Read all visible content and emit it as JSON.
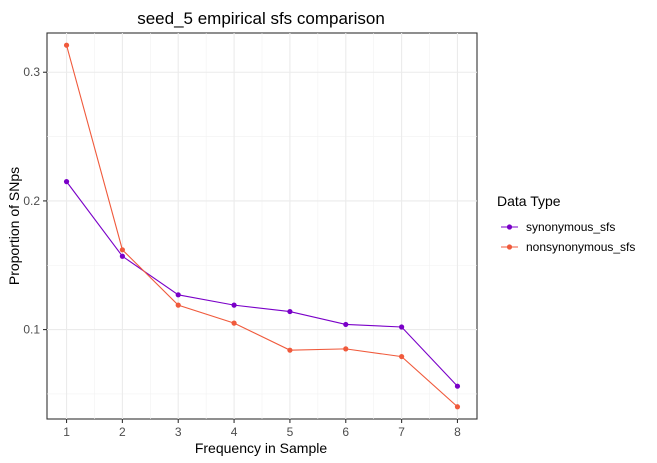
{
  "chart_data": {
    "type": "line",
    "title": "seed_5 empirical sfs comparison",
    "xlabel": "Frequency in Sample",
    "ylabel": "Proportion of SNps",
    "x": [
      1,
      2,
      3,
      4,
      5,
      6,
      7,
      8
    ],
    "xlim": [
      0.65,
      8.35
    ],
    "ylim": [
      0.0305,
      0.3305
    ],
    "yticks": [
      0.1,
      0.2,
      0.3
    ],
    "ytick_labels": [
      "0.1",
      "0.2",
      "0.3"
    ],
    "xtick_labels": [
      "1",
      "2",
      "3",
      "4",
      "5",
      "6",
      "7",
      "8"
    ],
    "grid": true,
    "legend": {
      "title": "Data Type",
      "placement": "right"
    },
    "series": [
      {
        "name": "synonymous_sfs",
        "color": "#7a00c8",
        "values": [
          0.215,
          0.157,
          0.127,
          0.119,
          0.114,
          0.104,
          0.102,
          0.056
        ]
      },
      {
        "name": "nonsynonymous_sfs",
        "color": "#f05a3c",
        "values": [
          0.321,
          0.162,
          0.119,
          0.105,
          0.084,
          0.085,
          0.079,
          0.04
        ]
      }
    ]
  }
}
